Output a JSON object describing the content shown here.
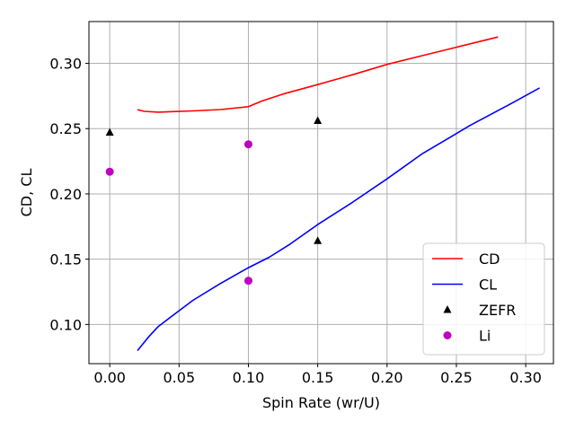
{
  "chart_data": {
    "type": "line",
    "title": "",
    "xlabel": "Spin Rate (wr/U)",
    "ylabel": "CD, CL",
    "xlim": [
      -0.015,
      0.32
    ],
    "ylim": [
      0.07,
      0.332
    ],
    "xticks": [
      0.0,
      0.05,
      0.1,
      0.15,
      0.2,
      0.25,
      0.3
    ],
    "xtick_labels": [
      "0.00",
      "0.05",
      "0.10",
      "0.15",
      "0.20",
      "0.25",
      "0.30"
    ],
    "yticks": [
      0.1,
      0.15,
      0.2,
      0.25,
      0.3
    ],
    "ytick_labels": [
      "0.10",
      "0.15",
      "0.20",
      "0.25",
      "0.30"
    ],
    "grid": true,
    "legend_position": "lower-right",
    "series": [
      {
        "name": "CD",
        "kind": "line",
        "color": "#ff0000",
        "x": [
          0.02,
          0.025,
          0.035,
          0.045,
          0.06,
          0.08,
          0.1,
          0.11,
          0.125,
          0.15,
          0.175,
          0.2,
          0.225,
          0.25,
          0.28
        ],
        "y": [
          0.2645,
          0.2632,
          0.2626,
          0.263,
          0.2636,
          0.2646,
          0.2668,
          0.2712,
          0.2765,
          0.2837,
          0.2912,
          0.2992,
          0.3058,
          0.3123,
          0.3202
        ]
      },
      {
        "name": "CL",
        "kind": "line",
        "color": "#0000ff",
        "x": [
          0.02,
          0.028,
          0.035,
          0.045,
          0.06,
          0.08,
          0.1,
          0.115,
          0.13,
          0.15,
          0.175,
          0.2,
          0.225,
          0.26,
          0.29,
          0.31
        ],
        "y": [
          0.08,
          0.0905,
          0.0985,
          0.1065,
          0.1185,
          0.1315,
          0.1435,
          0.1515,
          0.1615,
          0.1765,
          0.1935,
          0.2115,
          0.2305,
          0.2525,
          0.2695,
          0.2812
        ]
      },
      {
        "name": "ZEFR",
        "kind": "scatter",
        "marker": "triangle",
        "color": "#000000",
        "x": [
          0.0,
          0.15,
          0.15
        ],
        "y": [
          0.247,
          0.256,
          0.164
        ]
      },
      {
        "name": "Li",
        "kind": "scatter",
        "marker": "circle",
        "color": "#bf00bf",
        "x": [
          0.0,
          0.1,
          0.1
        ],
        "y": [
          0.217,
          0.238,
          0.1335
        ]
      }
    ]
  }
}
